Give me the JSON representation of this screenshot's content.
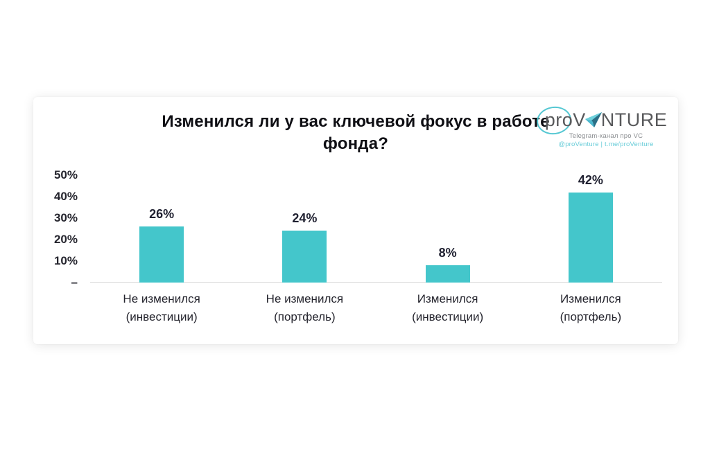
{
  "page": {
    "background": "#ffffff"
  },
  "logo": {
    "brand_pre": "proV",
    "brand_post": "NTURE",
    "tagline": "Telegram-канал про VC",
    "handles": "@proVenture | t.me/proVenture",
    "accent_color": "#54c7d2",
    "wordmark_color": "#58595b"
  },
  "chart_data": {
    "type": "bar",
    "title": "Изменился ли у вас ключевой фокус в работе фонда?",
    "categories": [
      "Не изменился (инвестиции)",
      "Не изменился (портфель)",
      "Изменился (инвестиции)",
      "Изменился (портфель)"
    ],
    "category_lines": [
      [
        "Не изменился",
        "(инвестиции)"
      ],
      [
        "Не изменился",
        "(портфель)"
      ],
      [
        "Изменился",
        "(инвестиции)"
      ],
      [
        "Изменился",
        "(портфель)"
      ]
    ],
    "values": [
      26,
      24,
      8,
      42
    ],
    "value_labels": [
      "26%",
      "24%",
      "8%",
      "42%"
    ],
    "y_ticks": [
      {
        "value": 50,
        "label": "50%"
      },
      {
        "value": 40,
        "label": "40%"
      },
      {
        "value": 30,
        "label": "30%"
      },
      {
        "value": 20,
        "label": "20%"
      },
      {
        "value": 10,
        "label": "10%"
      },
      {
        "value": 0,
        "label": "–"
      }
    ],
    "ylim": [
      0,
      50
    ],
    "xlabel": "",
    "ylabel": "",
    "grid": false,
    "legend": false,
    "bar_color": "#44c6cb",
    "axis_line_color": "#d8d8d8"
  }
}
